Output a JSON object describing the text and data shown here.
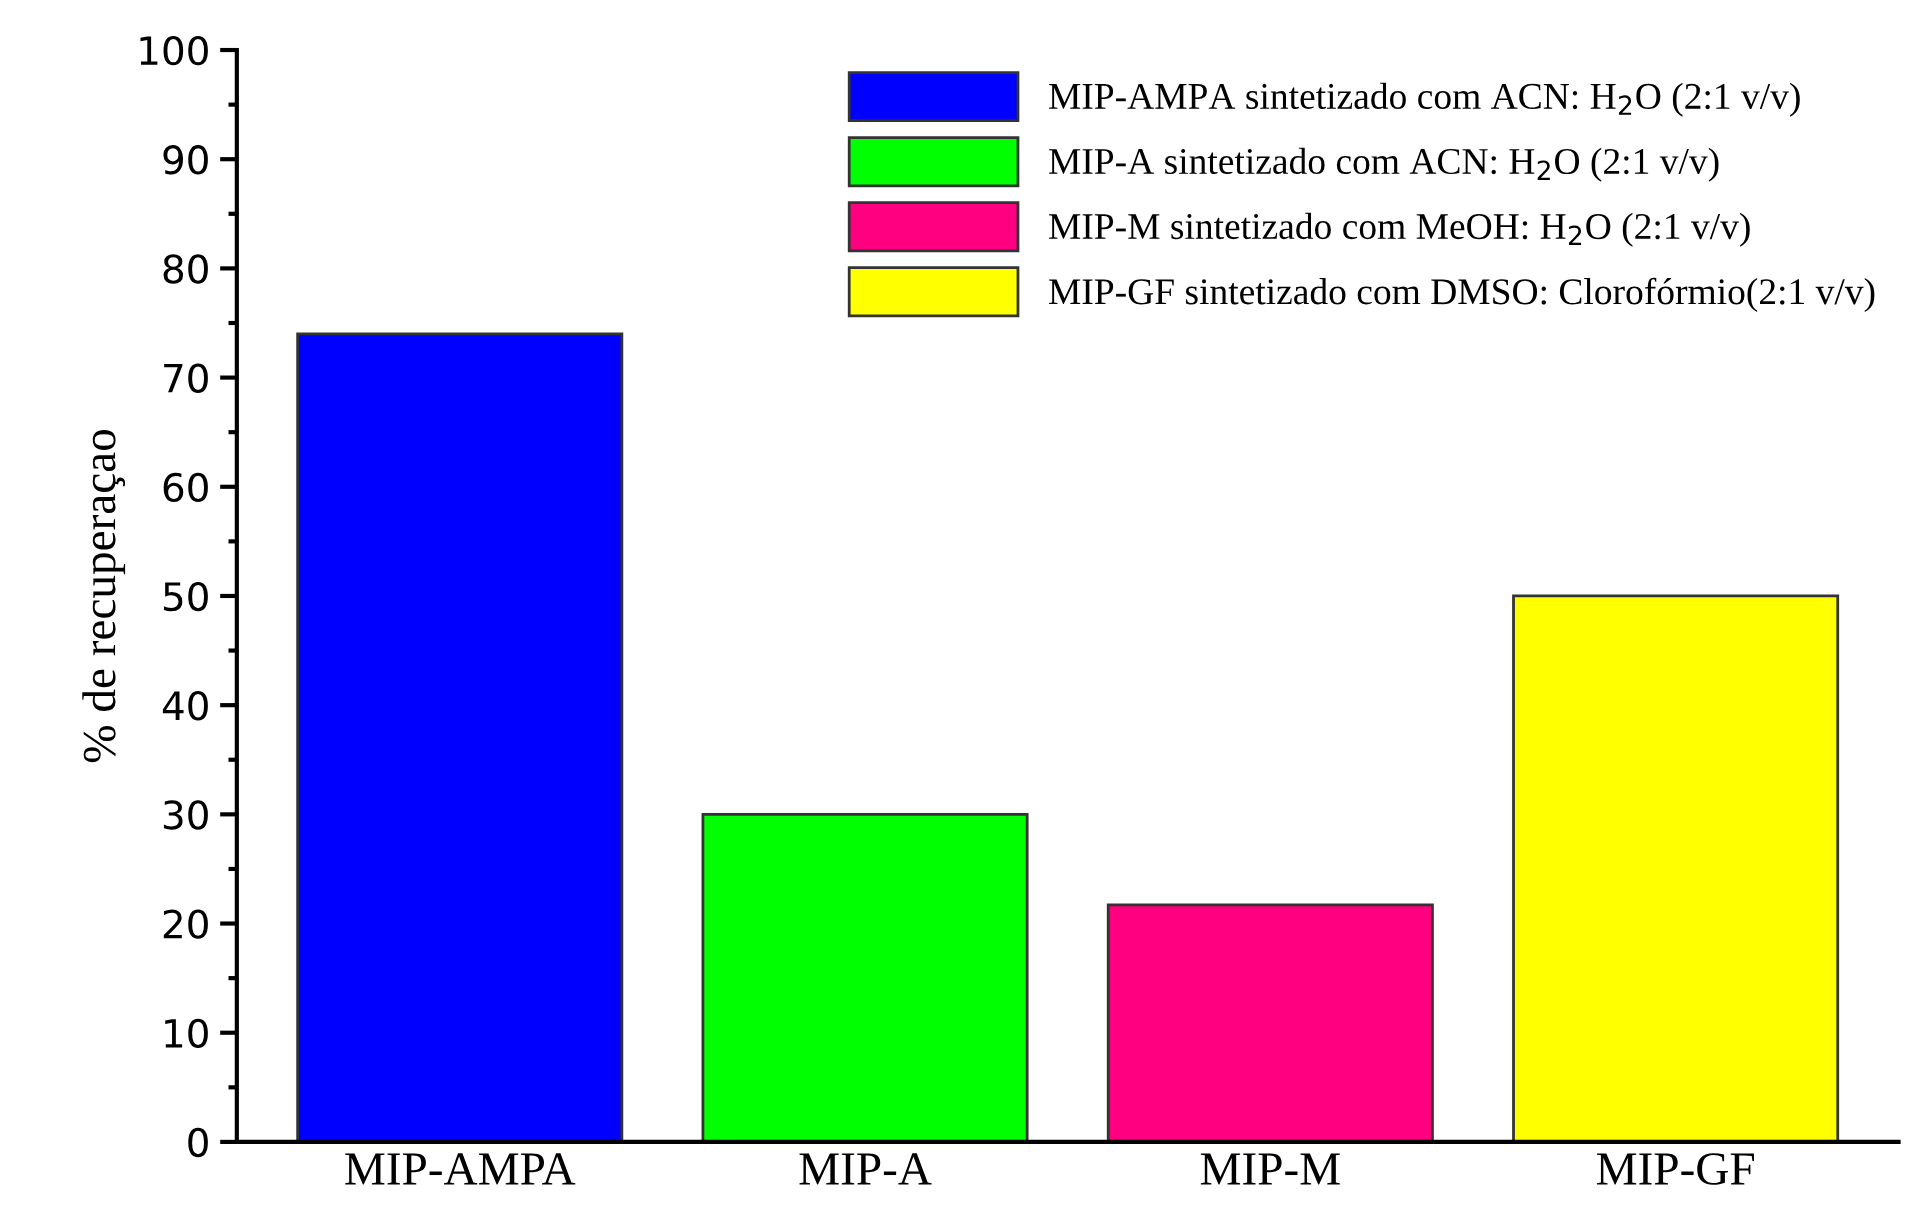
{
  "chart_data": {
    "type": "bar",
    "categories": [
      "MIP-AMPA",
      "MIP-A",
      "MIP-M",
      "MIP-GF"
    ],
    "ylabel": "% de recuperaçao",
    "series": [
      {
        "name": "MIP-AMPA sintetizado com ACN: H$_{2}$O (2:1 v/v)",
        "color": "#0000ff",
        "values": [
          74,
          null,
          null,
          null
        ]
      },
      {
        "name": "MIP-A sintetizado com ACN: H$_{2}$O (2:1 v/v)",
        "color": "#00ff00",
        "values": [
          null,
          30,
          null,
          null
        ]
      },
      {
        "name": "MIP-M sintetizado com MeOH: H$_{2}$O (2:1 v/v)",
        "color": "#ff0080",
        "values": [
          null,
          null,
          21.7,
          null
        ]
      },
      {
        "name": "MIP-GF sintetizado com DMSO: Clorofórmio(2:1 v/v)",
        "color": "#ffff00",
        "values": [
          null,
          null,
          null,
          50
        ]
      }
    ],
    "ylim": [
      0,
      100
    ],
    "yticks": [
      0,
      10,
      20,
      30,
      40,
      50,
      60,
      70,
      80,
      90,
      100
    ],
    "legend": "top right",
    "grid": false
  }
}
